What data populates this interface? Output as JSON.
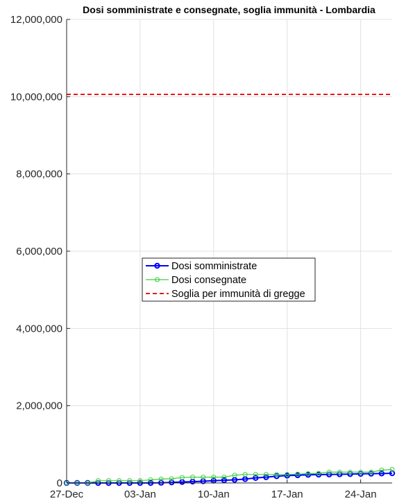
{
  "chart_data": {
    "type": "line",
    "title": "Dosi somministrate e consegnate, soglia immunità - Lombardia",
    "xlabel": "",
    "ylabel": "",
    "x_tick_labels": [
      "27-Dec",
      "03-Jan",
      "10-Jan",
      "17-Jan",
      "24-Jan"
    ],
    "x_tick_days": [
      0,
      7,
      14,
      21,
      28
    ],
    "xlim_days": [
      0,
      31
    ],
    "ylim": [
      0,
      12000000
    ],
    "y_tick_values": [
      0,
      2000000,
      4000000,
      6000000,
      8000000,
      10000000,
      12000000
    ],
    "y_tick_labels": [
      "0",
      "2,000,000",
      "4,000,000",
      "6,000,000",
      "8,000,000",
      "10,000,000",
      "12,000,000"
    ],
    "grid": true,
    "legend_position": "center",
    "series": [
      {
        "name": "Dosi somministrate",
        "color": "#0000ff",
        "style": "solid",
        "marker": "circle",
        "x_days": [
          0,
          1,
          2,
          3,
          4,
          5,
          6,
          7,
          8,
          9,
          10,
          11,
          12,
          13,
          14,
          15,
          16,
          17,
          18,
          19,
          20,
          21,
          22,
          23,
          24,
          25,
          26,
          27,
          28,
          29,
          30,
          31
        ],
        "values": [
          0,
          0,
          0,
          0,
          0,
          0,
          0,
          0,
          0,
          5000,
          15000,
          25000,
          35000,
          45000,
          60000,
          70000,
          80000,
          100000,
          130000,
          150000,
          175000,
          190000,
          200000,
          210000,
          215000,
          220000,
          225000,
          230000,
          235000,
          240000,
          245000,
          250000
        ]
      },
      {
        "name": "Dosi consegnate",
        "color": "#3ccf3c",
        "style": "solid",
        "marker": "open-circle",
        "x_days": [
          0,
          1,
          2,
          3,
          4,
          5,
          6,
          7,
          8,
          9,
          10,
          11,
          12,
          13,
          14,
          15,
          16,
          17,
          18,
          19,
          20,
          21,
          22,
          23,
          24,
          25,
          26,
          27,
          28,
          29,
          30,
          31
        ],
        "values": [
          0,
          0,
          0,
          60000,
          60000,
          60000,
          60000,
          60000,
          80000,
          100000,
          110000,
          140000,
          150000,
          150000,
          150000,
          150000,
          200000,
          220000,
          220000,
          220000,
          220000,
          220000,
          230000,
          240000,
          250000,
          280000,
          280000,
          280000,
          280000,
          280000,
          330000,
          350000
        ]
      },
      {
        "name": "Soglia per immunità di gregge",
        "color": "#e41a1c",
        "style": "dashed",
        "marker": "none",
        "x_days": [
          0,
          31
        ],
        "values": [
          10060000,
          10060000
        ]
      }
    ]
  }
}
